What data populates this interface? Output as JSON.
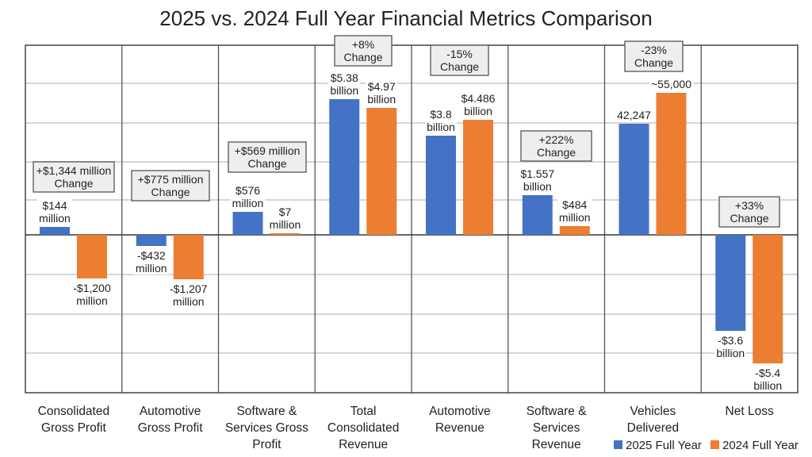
{
  "chart_data": {
    "type": "bar",
    "title": "2025 vs. 2024 Full Year Financial Metrics Comparison",
    "categories": [
      [
        "Consolidated",
        "Gross Profit"
      ],
      [
        "Automotive",
        "Gross Profit"
      ],
      [
        "Software &",
        "Services Gross",
        "Profit"
      ],
      [
        "Total",
        "Consolidated",
        "Revenue"
      ],
      [
        "Automotive",
        "Revenue"
      ],
      [
        "Software &",
        "Services",
        "Revenue"
      ],
      [
        "Vehicles",
        "Delivered"
      ],
      [
        "Net Loss"
      ]
    ],
    "series": [
      {
        "name": "2025 Full Year",
        "color": "#4472c4",
        "values": [
          144,
          -432,
          576,
          5.38,
          3.8,
          1.557,
          42247,
          -3.6
        ],
        "labels": [
          [
            "$144",
            "million"
          ],
          [
            "-$432",
            "million"
          ],
          [
            "$576",
            "million"
          ],
          [
            "$5.38",
            "billion"
          ],
          [
            "$3.8",
            "billion"
          ],
          [
            "$1.557",
            "billion"
          ],
          [
            "42,247"
          ],
          [
            "-$3.6",
            "billion"
          ]
        ]
      },
      {
        "name": "2024 Full Year",
        "color": "#ed7d31",
        "values": [
          -1200,
          -1207,
          7,
          4.97,
          4.486,
          484,
          55000,
          -5.4
        ],
        "labels": [
          [
            "-$1,200",
            "million"
          ],
          [
            "-$1,207",
            "million"
          ],
          [
            "$7",
            "million"
          ],
          [
            "$4.97",
            "billion"
          ],
          [
            "$4.486",
            "billion"
          ],
          [
            "$484",
            "million"
          ],
          [
            "~55,000"
          ],
          [
            "-$5.4",
            "billion"
          ]
        ]
      }
    ],
    "units": [
      "million USD",
      "million USD",
      "million USD",
      "billion USD",
      "billion USD",
      "mixed (billion / million USD)",
      "vehicles",
      "billion USD"
    ],
    "annotations": [
      [
        "+$1,344 million",
        "Change"
      ],
      [
        "+$775 million",
        "Change"
      ],
      [
        "+$569 million",
        "Change"
      ],
      [
        "+8%",
        "Change"
      ],
      [
        "-15%",
        "Change"
      ],
      [
        "+222%",
        "Change"
      ],
      [
        "-23%",
        "Change"
      ],
      [
        "+33%",
        "Change"
      ]
    ],
    "grid": true,
    "legend_position": "bottom-right"
  }
}
